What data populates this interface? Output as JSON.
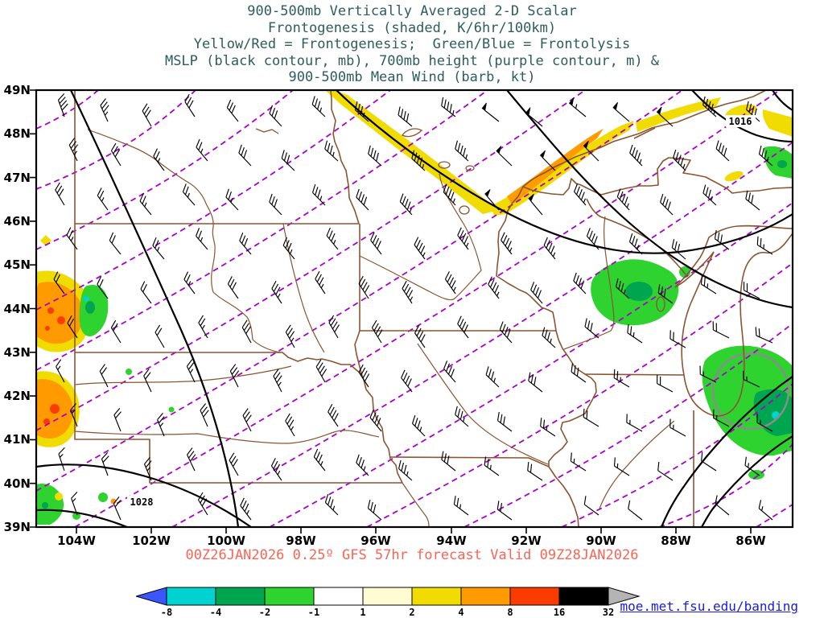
{
  "title": {
    "lines": [
      "900-500mb Vertically Averaged 2-D Scalar",
      "Frontogenesis (shaded, K/6hr/100km)",
      "Yellow/Red = Frontogenesis;  Green/Blue = Frontolysis",
      "MSLP (black contour, mb), 700mb height (purple contour, m) &",
      "900-500mb Mean Wind (barb, kt)"
    ]
  },
  "axes": {
    "y_ticks": [
      "49N",
      "48N",
      "47N",
      "46N",
      "45N",
      "44N",
      "43N",
      "42N",
      "41N",
      "40N",
      "39N"
    ],
    "x_ticks": [
      "104W",
      "102W",
      "100W",
      "98W",
      "96W",
      "94W",
      "92W",
      "90W",
      "88W",
      "86W"
    ]
  },
  "map_labels": {
    "mslp_high": "1028",
    "mslp_low": "1016"
  },
  "caption": "00Z26JAN2026 0.25º GFS 57hr forecast Valid 09Z28JAN2026",
  "footer_link": {
    "text": "moe.met.fsu.edu/banding"
  },
  "colorbar": {
    "ticks": [
      "-8",
      "-4",
      "-2",
      "-1",
      "1",
      "2",
      "4",
      "8",
      "16",
      "32"
    ],
    "segment_colors": [
      "#00d2d2",
      "#00a550",
      "#2fd32f",
      "#ffffff",
      "#fffbd2",
      "#f0dc00",
      "#ff9b00",
      "#fa3c00",
      "#000000"
    ],
    "arrow_left_color": "#3a56ff",
    "arrow_right_color": "#b4b4b4",
    "outline_color": "#000000"
  },
  "colors": {
    "title-color": "#2e5d5d",
    "caption-color": "#fa6455",
    "link-color": "#1a1ae6",
    "mslp-contour": "#000000",
    "height-contour": "#aa00cc",
    "state-border": "#8a5532",
    "shade-yellow": "#f0dc00",
    "shade-orange": "#ff9b00",
    "shade-red": "#fa3c00",
    "shade-green": "#2fd32f",
    "shade-teal": "#00a550",
    "shade-cyan": "#00d2d2"
  }
}
